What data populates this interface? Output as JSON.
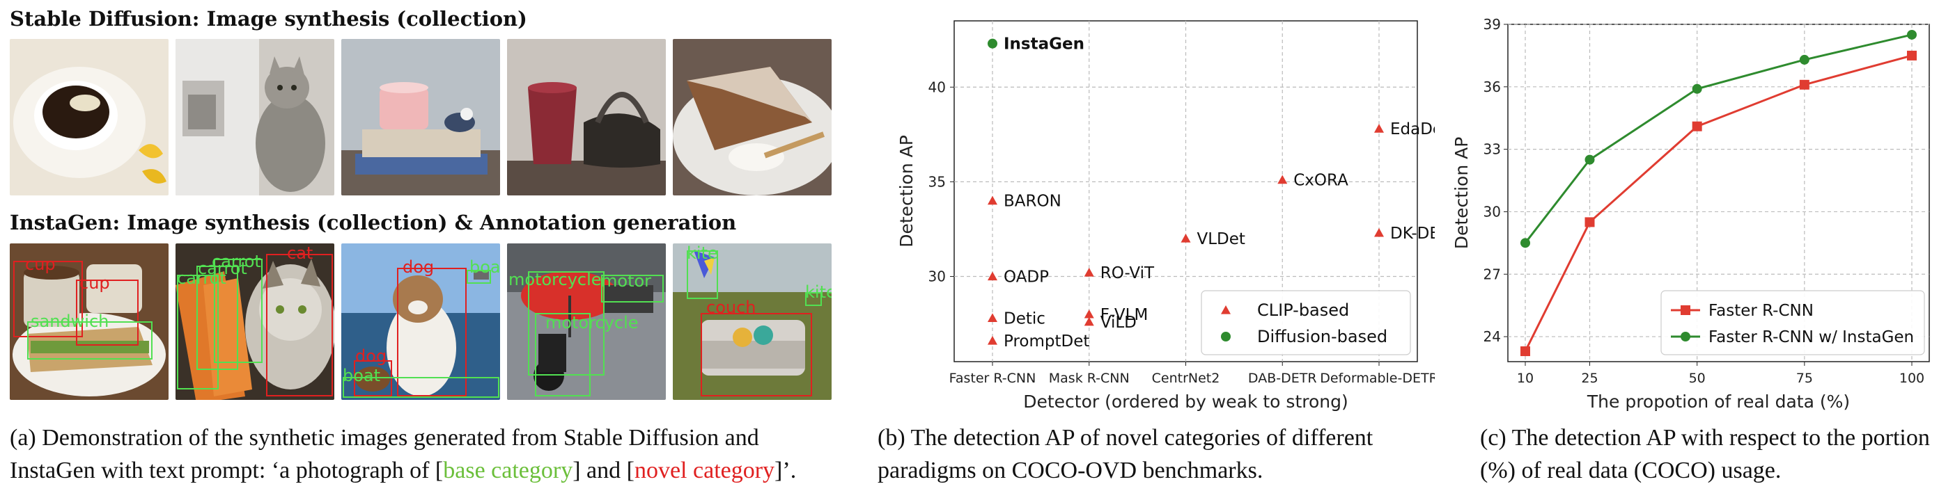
{
  "panel_a": {
    "title_row1": "Stable Diffusion: Image synthesis (collection)",
    "title_row2": "InstaGen: Image synthesis (collection) & Annotation generation",
    "detections": {
      "img1": [
        {
          "label": "cup",
          "kind": "novel"
        },
        {
          "label": "cup",
          "kind": "novel"
        },
        {
          "label": "sandwich",
          "kind": "base"
        }
      ],
      "img2": [
        {
          "label": "cat",
          "kind": "novel"
        },
        {
          "label": "carrot",
          "kind": "base"
        },
        {
          "label": "carrot",
          "kind": "base"
        },
        {
          "label": "carrot",
          "kind": "base"
        }
      ],
      "img3": [
        {
          "label": "dog",
          "kind": "novel"
        },
        {
          "label": "boat",
          "kind": "base"
        },
        {
          "label": "dog",
          "kind": "novel"
        },
        {
          "label": "boat",
          "kind": "base"
        }
      ],
      "img4": [
        {
          "label": "motorcycle",
          "kind": "base"
        },
        {
          "label": "motorcycle",
          "kind": "base"
        },
        {
          "label": "motor",
          "kind": "base"
        }
      ],
      "img5": [
        {
          "label": "kite",
          "kind": "base"
        },
        {
          "label": "kite",
          "kind": "base"
        },
        {
          "label": "couch",
          "kind": "novel"
        }
      ]
    },
    "caption_pre": "(a) Demonstration of the synthetic images generated from Stable Diffusion and InstaGen with text prompt: ‘a photograph of [",
    "caption_base": "base category",
    "caption_mid": "] and [",
    "caption_novel": "novel category",
    "caption_post": "]’.",
    "colors": {
      "base": "#52e052",
      "novel": "#e02020"
    }
  },
  "panel_b": {
    "caption": "(b) The detection AP of novel categories of different paradigms on COCO-OVD benchmarks.",
    "chart_data": {
      "type": "scatter",
      "xlabel": "Detector (ordered by weak to strong)",
      "ylabel": "Detection AP",
      "categories": [
        "Faster R-CNN",
        "Mask R-CNN",
        "CentrNet2",
        "DAB-DETR",
        "Deformable-DETR"
      ],
      "ylim": [
        25.5,
        43.5
      ],
      "yticks": [
        30,
        35,
        40
      ],
      "grid": true,
      "legend_position": "bottom-right",
      "series": [
        {
          "name": "CLIP-based",
          "marker": "triangle",
          "color": "#e03c31",
          "points": [
            {
              "x": "Faster R-CNN",
              "y": 34.0,
              "label": "BARON"
            },
            {
              "x": "Faster R-CNN",
              "y": 30.0,
              "label": "OADP"
            },
            {
              "x": "Faster R-CNN",
              "y": 27.8,
              "label": "Detic"
            },
            {
              "x": "Faster R-CNN",
              "y": 26.6,
              "label": "PromptDet"
            },
            {
              "x": "Mask R-CNN",
              "y": 30.2,
              "label": "RO-ViT"
            },
            {
              "x": "Mask R-CNN",
              "y": 28.0,
              "label": "F-VLM"
            },
            {
              "x": "Mask R-CNN",
              "y": 27.6,
              "label": "ViLD"
            },
            {
              "x": "CentrNet2",
              "y": 32.0,
              "label": "VLDet"
            },
            {
              "x": "DAB-DETR",
              "y": 35.1,
              "label": "CxORA"
            },
            {
              "x": "Deformable-DETR",
              "y": 37.8,
              "label": "EdaDet"
            },
            {
              "x": "Deformable-DETR",
              "y": 32.3,
              "label": "DK-DERT"
            }
          ]
        },
        {
          "name": "Diffusion-based",
          "marker": "circle",
          "color": "#2e8b2e",
          "points": [
            {
              "x": "Faster R-CNN",
              "y": 42.3,
              "label": "InstaGen"
            }
          ]
        }
      ]
    }
  },
  "panel_c": {
    "caption": "(c) The detection AP with respect to the portion (%) of real data (COCO) usage.",
    "chart_data": {
      "type": "line",
      "xlabel": "The propotion of real data (%)",
      "ylabel": "Detection AP",
      "x": [
        10,
        25,
        50,
        75,
        100
      ],
      "ylim": [
        22.8,
        39
      ],
      "yticks": [
        24,
        27,
        30,
        33,
        36,
        39
      ],
      "grid": true,
      "legend_position": "bottom-right",
      "series": [
        {
          "name": "Faster R-CNN",
          "marker": "square",
          "color": "#e03c31",
          "values": [
            23.3,
            29.5,
            34.1,
            36.1,
            37.5
          ]
        },
        {
          "name": "Faster R-CNN w/ InstaGen",
          "marker": "circle",
          "color": "#2e8b2e",
          "values": [
            28.5,
            32.5,
            35.9,
            37.3,
            38.5
          ]
        }
      ]
    }
  }
}
